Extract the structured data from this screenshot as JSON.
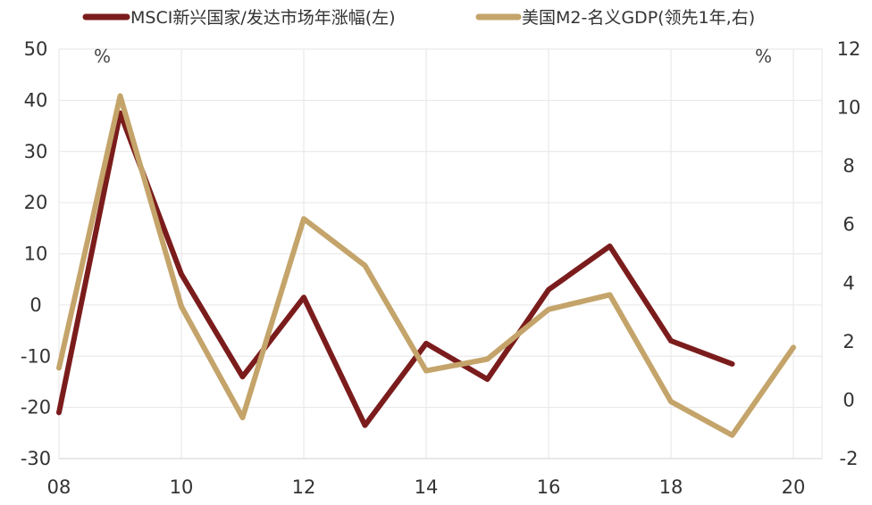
{
  "chart_data": {
    "type": "line",
    "x": [
      "08",
      "09",
      "10",
      "11",
      "12",
      "13",
      "14",
      "15",
      "16",
      "17",
      "18",
      "19",
      "20"
    ],
    "xtick_labels": [
      "08",
      "10",
      "12",
      "14",
      "16",
      "18",
      "20"
    ],
    "y_left": {
      "ylim": [
        -30,
        50
      ],
      "ticks": [
        "50",
        "40",
        "30",
        "20",
        "10",
        "0",
        "-10",
        "-20",
        "-30"
      ],
      "unit": "%"
    },
    "y_right": {
      "ylim": [
        -2,
        12
      ],
      "ticks": [
        "12",
        "10",
        "8",
        "6",
        "4",
        "2",
        "0",
        "-2"
      ],
      "unit": "%"
    },
    "grid": true,
    "legend_position": "top",
    "series": [
      {
        "name": "MSCI新兴国家/发达市场年涨幅(左)",
        "axis": "left",
        "color": "#7b1c1c",
        "values": [
          -21,
          37.5,
          6,
          -14,
          1.5,
          -23.5,
          -7.5,
          -14.5,
          3,
          11.5,
          -7,
          -11.5,
          null
        ]
      },
      {
        "name": "美国M2-名义GDP(领先1年,右)",
        "axis": "right",
        "color": "#c4a46a",
        "values": [
          1.1,
          10.4,
          3.2,
          -0.6,
          6.2,
          4.6,
          1.0,
          1.4,
          3.1,
          3.6,
          -0.05,
          -1.2,
          1.8
        ]
      }
    ]
  }
}
